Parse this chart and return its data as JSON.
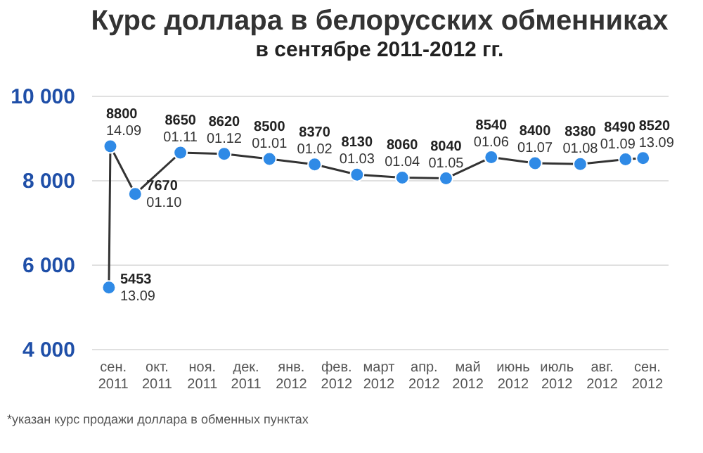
{
  "chart_data": {
    "type": "line",
    "title": "Курс доллара в белорусских обменниках",
    "subtitle": "в сентябре 2011-2012 гг.",
    "x": [
      "2011-09-13",
      "2011-09-14",
      "2011-10-01",
      "2011-11-01",
      "2011-12-01",
      "2012-01-01",
      "2012-02-01",
      "2012-03-01",
      "2012-04-01",
      "2012-05-01",
      "2012-06-01",
      "2012-07-01",
      "2012-08-01",
      "2012-09-01",
      "2012-09-13"
    ],
    "series": [
      {
        "color": "#2f8ae6",
        "values": [
          5453,
          8800,
          7670,
          8650,
          8620,
          8500,
          8370,
          8130,
          8060,
          8040,
          8540,
          8400,
          8380,
          8490,
          8520
        ]
      }
    ],
    "data_labels": true,
    "marker": "circle",
    "line_style": "solid",
    "grid": "y",
    "ylim": [
      4000,
      10000
    ],
    "yticks": [
      {
        "value": 4000,
        "label": "4 000"
      },
      {
        "value": 6000,
        "label": "6 000"
      },
      {
        "value": 8000,
        "label": "8 000"
      },
      {
        "value": 10000,
        "label": "10 000"
      }
    ],
    "xlim": [
      "2011-09-01",
      "2012-09-30"
    ],
    "xticks": [
      {
        "value": "2011-09-16",
        "label": "сен. 2011"
      },
      {
        "value": "2011-10-16",
        "label": "окт. 2011"
      },
      {
        "value": "2011-11-16",
        "label": "ноя. 2011"
      },
      {
        "value": "2011-12-16",
        "label": "дек. 2011"
      },
      {
        "value": "2012-01-16",
        "label": "янв. 2012"
      },
      {
        "value": "2012-02-16",
        "label": "фев. 2012"
      },
      {
        "value": "2012-03-16",
        "label": "март 2012"
      },
      {
        "value": "2012-04-16",
        "label": "апр. 2012"
      },
      {
        "value": "2012-05-16",
        "label": "май 2012"
      },
      {
        "value": "2012-06-16",
        "label": "июнь 2012"
      },
      {
        "value": "2012-07-16",
        "label": "июль 2012"
      },
      {
        "value": "2012-08-16",
        "label": "авг. 2012"
      },
      {
        "value": "2012-09-16",
        "label": "сен. 2012"
      }
    ],
    "annotations": [
      {
        "text": "13.09",
        "x": "2011-09-13",
        "y": 5453
      },
      {
        "text": "14.09",
        "x": "2011-09-14",
        "y": 8800
      },
      {
        "text": "01.10",
        "x": "2011-10-01",
        "y": 7670
      },
      {
        "text": "01.11",
        "x": "2011-11-01",
        "y": 8650
      },
      {
        "text": "01.12",
        "x": "2011-12-01",
        "y": 8620
      },
      {
        "text": "01.01",
        "x": "2012-01-01",
        "y": 8500
      },
      {
        "text": "01.02",
        "x": "2012-02-01",
        "y": 8370
      },
      {
        "text": "01.03",
        "x": "2012-03-01",
        "y": 8130
      },
      {
        "text": "01.04",
        "x": "2012-04-01",
        "y": 8060
      },
      {
        "text": "01.05",
        "x": "2012-05-01",
        "y": 8040
      },
      {
        "text": "01.06",
        "x": "2012-06-01",
        "y": 8540
      },
      {
        "text": "01.07",
        "x": "2012-07-01",
        "y": 8400
      },
      {
        "text": "01.08",
        "x": "2012-08-01",
        "y": 8380
      },
      {
        "text": "01.09",
        "x": "2012-09-01",
        "y": 8490
      },
      {
        "text": "13.09",
        "x": "2012-09-13",
        "y": 8520
      },
      "*указан курс продажи доллара в обменных пунктах"
    ]
  }
}
